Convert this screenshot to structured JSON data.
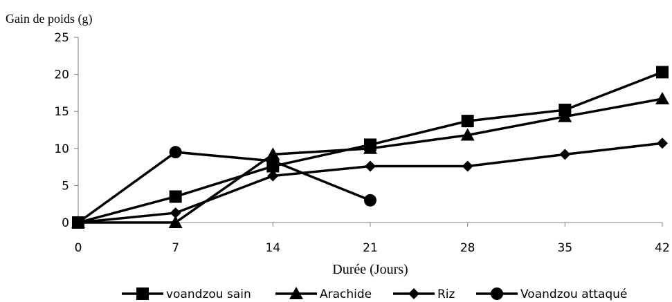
{
  "chart_data": {
    "type": "line",
    "ylabel": "Gain de poids (g)",
    "xlabel": "Durée (Jours)",
    "x": [
      0,
      7,
      14,
      21,
      28,
      35,
      42
    ],
    "xticks": [
      "0",
      "7",
      "14",
      "21",
      "28",
      "35",
      "42"
    ],
    "yticks": [
      "0",
      "5",
      "10",
      "15",
      "20",
      "25"
    ],
    "xlim": [
      0,
      42
    ],
    "ylim": [
      0,
      25
    ],
    "grid": false,
    "legend_position": "bottom",
    "line_color": "#000000",
    "series": [
      {
        "name": "voandzou sain",
        "marker": "square",
        "x": [
          0,
          7,
          14,
          21,
          28,
          35,
          42
        ],
        "values": [
          0,
          3.5,
          7.6,
          10.5,
          13.7,
          15.2,
          20.3
        ]
      },
      {
        "name": "Arachide",
        "marker": "triangle",
        "x": [
          0,
          7,
          14,
          21,
          28,
          35,
          42
        ],
        "values": [
          0,
          0,
          9.2,
          10.0,
          11.8,
          14.3,
          16.7
        ]
      },
      {
        "name": "Riz",
        "marker": "diamond",
        "x": [
          0,
          7,
          14,
          21,
          28,
          35,
          42
        ],
        "values": [
          0,
          1.3,
          6.3,
          7.6,
          7.6,
          9.2,
          10.7
        ]
      },
      {
        "name": "Voandzou attaqué",
        "marker": "circle",
        "x": [
          0,
          7,
          14,
          21
        ],
        "values": [
          0,
          9.5,
          8.3,
          3.0
        ]
      }
    ]
  }
}
